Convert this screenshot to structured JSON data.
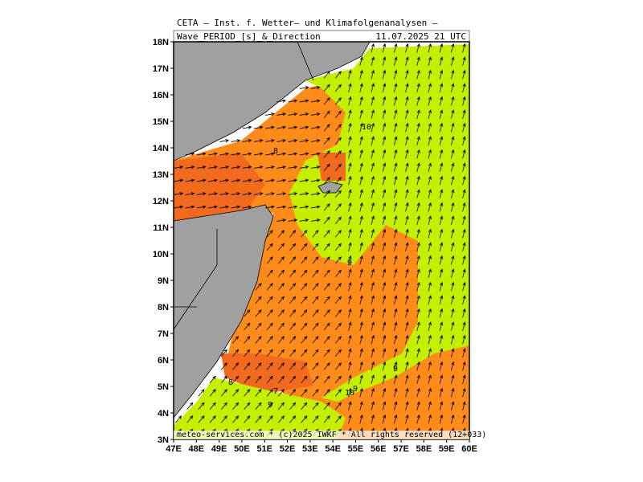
{
  "header": {
    "title": "CETA — Inst. f. Wetter— und Klimafolgenanalysen —",
    "field": "Wave_PERIOD_[s]_&_Direction",
    "valid_time": "11.07.2025 21 UTC"
  },
  "map": {
    "lat_ticks": [
      {
        "value": 18,
        "label": "18N"
      },
      {
        "value": 17,
        "label": "17N"
      },
      {
        "value": 16,
        "label": "16N"
      },
      {
        "value": 15,
        "label": "15N"
      },
      {
        "value": 14,
        "label": "14N"
      },
      {
        "value": 13,
        "label": "13N"
      },
      {
        "value": 12,
        "label": "12N"
      },
      {
        "value": 11,
        "label": "11N"
      },
      {
        "value": 10,
        "label": "10N"
      },
      {
        "value": 9,
        "label": "9N"
      },
      {
        "value": 8,
        "label": "8N"
      },
      {
        "value": 7,
        "label": "7N"
      },
      {
        "value": 6,
        "label": "6N"
      },
      {
        "value": 5,
        "label": "5N"
      },
      {
        "value": 4,
        "label": "4N"
      },
      {
        "value": 3,
        "label": "3N"
      }
    ],
    "lon_ticks": [
      {
        "value": 47,
        "label": "47E"
      },
      {
        "value": 48,
        "label": "48E"
      },
      {
        "value": 49,
        "label": "49E"
      },
      {
        "value": 50,
        "label": "50E"
      },
      {
        "value": 51,
        "label": "51E"
      },
      {
        "value": 52,
        "label": "52E"
      },
      {
        "value": 53,
        "label": "53E"
      },
      {
        "value": 54,
        "label": "54E"
      },
      {
        "value": 55,
        "label": "55E"
      },
      {
        "value": 56,
        "label": "56E"
      },
      {
        "value": 57,
        "label": "57E"
      },
      {
        "value": 58,
        "label": "58E"
      },
      {
        "value": 59,
        "label": "59E"
      },
      {
        "value": 60,
        "label": "60E"
      }
    ],
    "contour_labels": [
      10,
      8,
      9,
      9,
      8,
      7,
      9,
      9,
      10
    ]
  },
  "footer": "meteo-services.com * (c)2025 IWKF * All rights reserved (12+033)"
}
